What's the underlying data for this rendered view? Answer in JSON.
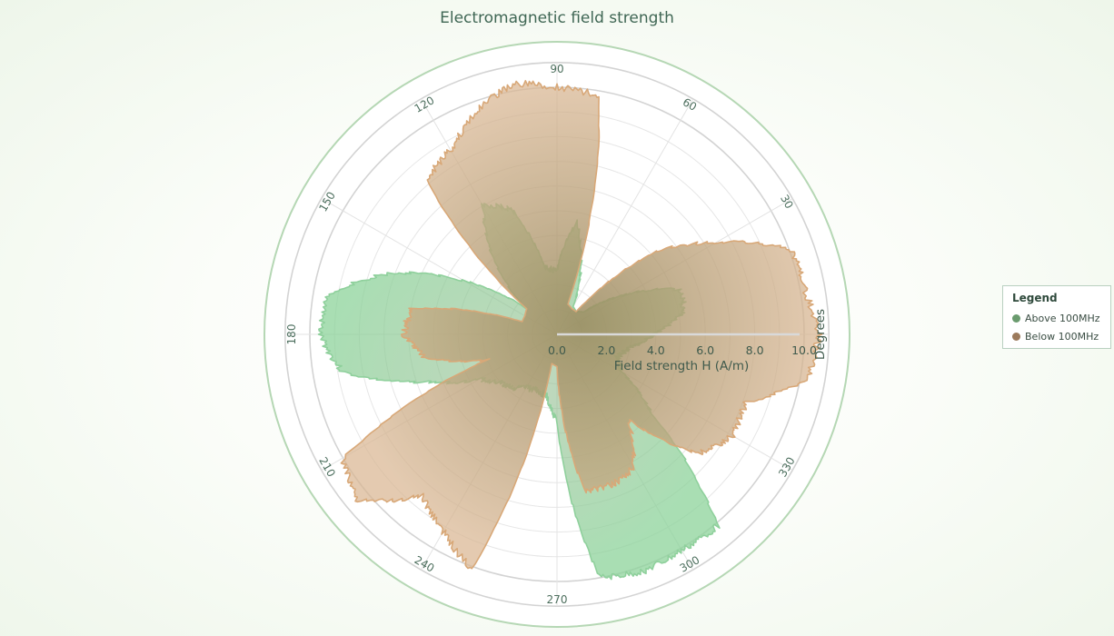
{
  "chart_data": {
    "type": "polar-area",
    "title": "Electromagnetic field strength",
    "radial_axis": {
      "label": "Field strength H (A/m)",
      "range": [
        0,
        10
      ],
      "ticks": [
        "0.0",
        "2.0",
        "4.0",
        "6.0",
        "8.0",
        "10.0"
      ]
    },
    "angular_axis": {
      "label": "Degrees",
      "unit": "degrees",
      "ticks": [
        "90",
        "60",
        "30",
        "330",
        "300",
        "270",
        "240",
        "210",
        "180",
        "150",
        "120"
      ],
      "tick_values": [
        90,
        60,
        30,
        330,
        300,
        270,
        240,
        210,
        180,
        150,
        120
      ]
    },
    "grid": true,
    "legend_position": "right",
    "series": [
      {
        "name": "Above 100MHz",
        "color": "#7fbf8a",
        "points": [
          {
            "angle": 0,
            "value": 3.9
          },
          {
            "angle": 10,
            "value": 5.2
          },
          {
            "angle": 20,
            "value": 5.3
          },
          {
            "angle": 30,
            "value": 3.2
          },
          {
            "angle": 40,
            "value": 1.4
          },
          {
            "angle": 50,
            "value": 1.2
          },
          {
            "angle": 60,
            "value": 1.3
          },
          {
            "angle": 70,
            "value": 2.8
          },
          {
            "angle": 80,
            "value": 4.6
          },
          {
            "angle": 90,
            "value": 2.6
          },
          {
            "angle": 100,
            "value": 2.7
          },
          {
            "angle": 110,
            "value": 5.4
          },
          {
            "angle": 120,
            "value": 6.0
          },
          {
            "angle": 130,
            "value": 4.0
          },
          {
            "angle": 140,
            "value": 1.7
          },
          {
            "angle": 150,
            "value": 4.3
          },
          {
            "angle": 160,
            "value": 7.2
          },
          {
            "angle": 170,
            "value": 9.4
          },
          {
            "angle": 180,
            "value": 9.6
          },
          {
            "angle": 190,
            "value": 8.8
          },
          {
            "angle": 200,
            "value": 5.6
          },
          {
            "angle": 210,
            "value": 3.6
          },
          {
            "angle": 220,
            "value": 3.0
          },
          {
            "angle": 230,
            "value": 2.8
          },
          {
            "angle": 240,
            "value": 2.5
          },
          {
            "angle": 250,
            "value": 2.4
          },
          {
            "angle": 260,
            "value": 2.5
          },
          {
            "angle": 270,
            "value": 3.5
          },
          {
            "angle": 280,
            "value": 10.0
          },
          {
            "angle": 290,
            "value": 10.2
          },
          {
            "angle": 300,
            "value": 10.1
          },
          {
            "angle": 310,
            "value": 10.1
          },
          {
            "angle": 320,
            "value": 5.0
          },
          {
            "angle": 330,
            "value": 3.0
          },
          {
            "angle": 340,
            "value": 2.6
          },
          {
            "angle": 350,
            "value": 3.0
          }
        ]
      },
      {
        "name": "Below 100MHz",
        "color": "#c4a07f",
        "points": [
          {
            "angle": 0,
            "value": 10.6
          },
          {
            "angle": 10,
            "value": 10.2
          },
          {
            "angle": 20,
            "value": 10.1
          },
          {
            "angle": 30,
            "value": 7.4
          },
          {
            "angle": 40,
            "value": 5.2
          },
          {
            "angle": 50,
            "value": 1.2
          },
          {
            "angle": 60,
            "value": 1.2
          },
          {
            "angle": 70,
            "value": 1.3
          },
          {
            "angle": 80,
            "value": 9.8
          },
          {
            "angle": 90,
            "value": 10.0
          },
          {
            "angle": 100,
            "value": 10.3
          },
          {
            "angle": 110,
            "value": 9.6
          },
          {
            "angle": 120,
            "value": 8.6
          },
          {
            "angle": 130,
            "value": 8.2
          },
          {
            "angle": 140,
            "value": 1.6
          },
          {
            "angle": 150,
            "value": 1.5
          },
          {
            "angle": 160,
            "value": 1.5
          },
          {
            "angle": 170,
            "value": 6.0
          },
          {
            "angle": 180,
            "value": 6.2
          },
          {
            "angle": 190,
            "value": 5.4
          },
          {
            "angle": 200,
            "value": 3.0
          },
          {
            "angle": 210,
            "value": 10.0
          },
          {
            "angle": 220,
            "value": 10.5
          },
          {
            "angle": 230,
            "value": 8.5
          },
          {
            "angle": 240,
            "value": 9.2
          },
          {
            "angle": 250,
            "value": 10.1
          },
          {
            "angle": 260,
            "value": 1.2
          },
          {
            "angle": 270,
            "value": 1.3
          },
          {
            "angle": 280,
            "value": 6.4
          },
          {
            "angle": 290,
            "value": 6.5
          },
          {
            "angle": 300,
            "value": 6.2
          },
          {
            "angle": 310,
            "value": 4.5
          },
          {
            "angle": 320,
            "value": 7.5
          },
          {
            "angle": 330,
            "value": 8.2
          },
          {
            "angle": 340,
            "value": 8.1
          },
          {
            "angle": 350,
            "value": 10.3
          }
        ]
      }
    ]
  },
  "legend": {
    "title": "Legend",
    "items": [
      {
        "label": "Above 100MHz",
        "color": "#6a9b6e"
      },
      {
        "label": "Below 100MHz",
        "color": "#9c7a5c"
      }
    ]
  }
}
